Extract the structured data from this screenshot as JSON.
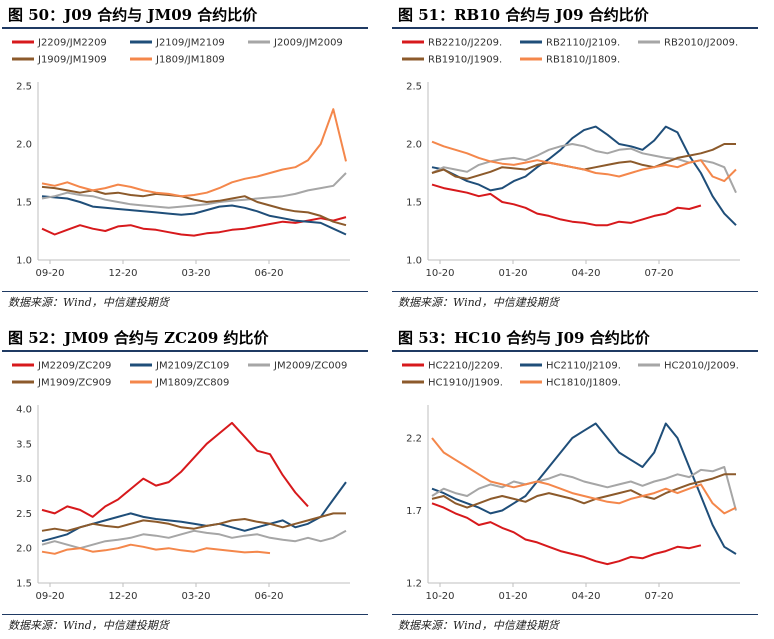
{
  "source_label": "数据来源：Wind，中信建投期货",
  "chart_data": [
    {
      "type": "line",
      "title": "图 50：J09 合约与 JM09 合约比价",
      "yticks": [
        "2.5",
        "2.0",
        "1.5",
        "1.0"
      ],
      "ylim": [
        1.0,
        2.5
      ],
      "xticks": [
        "09-20",
        "12-20",
        "03-20",
        "06-20"
      ],
      "series": [
        {
          "name": "J2209/JM2209",
          "color": "#d7191c",
          "values": [
            1.27,
            1.22,
            1.26,
            1.3,
            1.27,
            1.25,
            1.29,
            1.3,
            1.27,
            1.26,
            1.24,
            1.22,
            1.21,
            1.23,
            1.24,
            1.26,
            1.27,
            1.29,
            1.31,
            1.33,
            1.32,
            1.34,
            1.36,
            1.34,
            1.37
          ]
        },
        {
          "name": "J2109/JM2109",
          "color": "#1f4e79",
          "values": [
            1.55,
            1.54,
            1.53,
            1.5,
            1.46,
            1.45,
            1.44,
            1.43,
            1.42,
            1.41,
            1.4,
            1.39,
            1.4,
            1.43,
            1.46,
            1.47,
            1.45,
            1.42,
            1.38,
            1.36,
            1.34,
            1.33,
            1.32,
            1.27,
            1.22
          ]
        },
        {
          "name": "J2009/JM2009",
          "color": "#a6a6a6",
          "values": [
            1.53,
            1.55,
            1.58,
            1.56,
            1.55,
            1.52,
            1.5,
            1.48,
            1.47,
            1.46,
            1.45,
            1.46,
            1.47,
            1.48,
            1.5,
            1.51,
            1.52,
            1.53,
            1.54,
            1.55,
            1.57,
            1.6,
            1.62,
            1.64,
            1.75
          ]
        },
        {
          "name": "J1909/JM1909",
          "color": "#8c5a2b",
          "values": [
            1.63,
            1.62,
            1.6,
            1.58,
            1.6,
            1.57,
            1.58,
            1.56,
            1.55,
            1.57,
            1.56,
            1.55,
            1.52,
            1.5,
            1.51,
            1.53,
            1.55,
            1.5,
            1.47,
            1.44,
            1.42,
            1.41,
            1.38,
            1.33,
            1.3
          ]
        },
        {
          "name": "J1809/JM1809",
          "color": "#f4874b",
          "values": [
            1.66,
            1.64,
            1.67,
            1.63,
            1.6,
            1.62,
            1.65,
            1.63,
            1.6,
            1.58,
            1.57,
            1.55,
            1.56,
            1.58,
            1.62,
            1.67,
            1.7,
            1.72,
            1.75,
            1.78,
            1.8,
            1.86,
            2.0,
            2.3,
            1.85
          ]
        }
      ]
    },
    {
      "type": "line",
      "title": "图 51：RB10 合约与 J09 合约比价",
      "yticks": [
        "2.5",
        "2.0",
        "1.5",
        "1.0"
      ],
      "ylim": [
        1.0,
        2.5
      ],
      "xticks": [
        "10-20",
        "01-20",
        "04-20",
        "07-20"
      ],
      "series": [
        {
          "name": "RB2210/J2209.",
          "color": "#d7191c",
          "values": [
            1.65,
            1.62,
            1.6,
            1.58,
            1.55,
            1.57,
            1.5,
            1.48,
            1.45,
            1.4,
            1.38,
            1.35,
            1.33,
            1.32,
            1.3,
            1.3,
            1.33,
            1.32,
            1.35,
            1.38,
            1.4,
            1.45,
            1.44,
            1.47,
            null,
            null,
            null
          ]
        },
        {
          "name": "RB2110/J2109.",
          "color": "#1f4e79",
          "values": [
            1.8,
            1.78,
            1.73,
            1.68,
            1.65,
            1.6,
            1.62,
            1.68,
            1.72,
            1.8,
            1.87,
            1.95,
            2.05,
            2.12,
            2.15,
            2.08,
            2.0,
            1.98,
            1.95,
            2.03,
            2.15,
            2.1,
            1.9,
            1.75,
            1.55,
            1.4,
            1.3
          ]
        },
        {
          "name": "RB2010/J2009.",
          "color": "#a6a6a6",
          "values": [
            1.75,
            1.8,
            1.78,
            1.76,
            1.82,
            1.85,
            1.87,
            1.88,
            1.86,
            1.9,
            1.95,
            1.98,
            2.0,
            1.98,
            1.94,
            1.92,
            1.95,
            1.96,
            1.92,
            1.9,
            1.88,
            1.87,
            1.84,
            1.86,
            1.84,
            1.8,
            1.58
          ]
        },
        {
          "name": "RB1910/J1909.",
          "color": "#8c5a2b",
          "values": [
            1.75,
            1.78,
            1.72,
            1.7,
            1.73,
            1.76,
            1.8,
            1.79,
            1.78,
            1.82,
            1.84,
            1.82,
            1.8,
            1.78,
            1.8,
            1.82,
            1.84,
            1.85,
            1.82,
            1.8,
            1.84,
            1.88,
            1.9,
            1.92,
            1.95,
            2.0,
            2.0
          ]
        },
        {
          "name": "RB1810/J1809.",
          "color": "#f4874b",
          "values": [
            2.02,
            1.98,
            1.95,
            1.92,
            1.88,
            1.85,
            1.83,
            1.82,
            1.84,
            1.86,
            1.84,
            1.82,
            1.8,
            1.78,
            1.75,
            1.74,
            1.72,
            1.75,
            1.78,
            1.8,
            1.82,
            1.8,
            1.84,
            1.86,
            1.72,
            1.68,
            1.78
          ]
        }
      ]
    },
    {
      "type": "line",
      "title": "图 52：JM09 合约与 ZC209 约比价",
      "yticks": [
        "4.0",
        "3.5",
        "3.0",
        "2.5",
        "2.0",
        "1.5"
      ],
      "ylim": [
        1.5,
        4.0
      ],
      "xticks": [
        "09-20",
        "12-20",
        "03-20",
        "06-20"
      ],
      "series": [
        {
          "name": "JM2209/ZC209",
          "color": "#d7191c",
          "values": [
            2.55,
            2.5,
            2.6,
            2.55,
            2.45,
            2.6,
            2.7,
            2.85,
            3.0,
            2.9,
            2.95,
            3.1,
            3.3,
            3.5,
            3.65,
            3.8,
            3.6,
            3.4,
            3.35,
            3.05,
            2.8,
            2.6,
            null,
            null,
            null
          ]
        },
        {
          "name": "JM2109/ZC109",
          "color": "#1f4e79",
          "values": [
            2.1,
            2.15,
            2.2,
            2.3,
            2.35,
            2.4,
            2.45,
            2.5,
            2.45,
            2.42,
            2.4,
            2.38,
            2.35,
            2.32,
            2.35,
            2.3,
            2.25,
            2.3,
            2.35,
            2.4,
            2.3,
            2.35,
            2.45,
            2.7,
            2.95
          ]
        },
        {
          "name": "JM2009/ZC009",
          "color": "#a6a6a6",
          "values": [
            2.05,
            2.1,
            2.05,
            2.0,
            2.05,
            2.1,
            2.12,
            2.15,
            2.2,
            2.18,
            2.15,
            2.2,
            2.25,
            2.22,
            2.2,
            2.15,
            2.18,
            2.2,
            2.15,
            2.12,
            2.1,
            2.15,
            2.1,
            2.15,
            2.25
          ]
        },
        {
          "name": "JM1909/ZC909",
          "color": "#8c5a2b",
          "values": [
            2.25,
            2.28,
            2.25,
            2.3,
            2.35,
            2.32,
            2.3,
            2.35,
            2.4,
            2.38,
            2.35,
            2.3,
            2.28,
            2.32,
            2.35,
            2.4,
            2.42,
            2.38,
            2.35,
            2.3,
            2.35,
            2.4,
            2.45,
            2.5,
            2.5
          ]
        },
        {
          "name": "JM1809/ZC809",
          "color": "#f4874b",
          "values": [
            1.95,
            1.92,
            1.98,
            2.0,
            1.95,
            1.97,
            2.0,
            2.05,
            2.02,
            1.98,
            2.0,
            1.97,
            1.95,
            2.0,
            1.98,
            1.96,
            1.94,
            1.95,
            1.93,
            null,
            null,
            null,
            null,
            null,
            null
          ]
        }
      ]
    },
    {
      "type": "line",
      "title": "图 53：HC10 合约与 J09 合约比价",
      "yticks": [
        "2.2",
        "1.7",
        "1.2"
      ],
      "ylim": [
        1.2,
        2.4
      ],
      "xticks": [
        "10-20",
        "01-20",
        "04-20",
        "07-20"
      ],
      "series": [
        {
          "name": "HC2210/J2209.",
          "color": "#d7191c",
          "values": [
            1.75,
            1.72,
            1.68,
            1.65,
            1.6,
            1.62,
            1.58,
            1.55,
            1.5,
            1.48,
            1.45,
            1.42,
            1.4,
            1.38,
            1.35,
            1.33,
            1.35,
            1.38,
            1.37,
            1.4,
            1.42,
            1.45,
            1.44,
            1.46,
            null,
            null,
            null
          ]
        },
        {
          "name": "HC2110/J2109.",
          "color": "#1f4e79",
          "values": [
            1.85,
            1.82,
            1.78,
            1.75,
            1.72,
            1.68,
            1.7,
            1.75,
            1.8,
            1.9,
            2.0,
            2.1,
            2.2,
            2.25,
            2.3,
            2.2,
            2.1,
            2.05,
            2.0,
            2.1,
            2.3,
            2.2,
            2.0,
            1.8,
            1.6,
            1.45,
            1.4
          ]
        },
        {
          "name": "HC2010/J2009.",
          "color": "#a6a6a6",
          "values": [
            1.8,
            1.85,
            1.82,
            1.8,
            1.85,
            1.88,
            1.86,
            1.9,
            1.88,
            1.9,
            1.92,
            1.95,
            1.93,
            1.9,
            1.88,
            1.86,
            1.88,
            1.9,
            1.87,
            1.9,
            1.92,
            1.95,
            1.93,
            1.98,
            1.97,
            2.0,
            1.7
          ]
        },
        {
          "name": "HC1910/J1909.",
          "color": "#8c5a2b",
          "values": [
            1.78,
            1.8,
            1.75,
            1.72,
            1.75,
            1.78,
            1.8,
            1.78,
            1.76,
            1.8,
            1.82,
            1.8,
            1.78,
            1.75,
            1.78,
            1.8,
            1.82,
            1.84,
            1.8,
            1.78,
            1.82,
            1.85,
            1.88,
            1.9,
            1.92,
            1.95,
            1.95
          ]
        },
        {
          "name": "HC1810/J1809.",
          "color": "#f4874b",
          "values": [
            2.2,
            2.1,
            2.05,
            2.0,
            1.95,
            1.9,
            1.88,
            1.86,
            1.88,
            1.9,
            1.88,
            1.85,
            1.82,
            1.8,
            1.78,
            1.76,
            1.75,
            1.78,
            1.8,
            1.82,
            1.85,
            1.82,
            1.85,
            1.88,
            1.75,
            1.68,
            1.72
          ]
        }
      ]
    }
  ]
}
